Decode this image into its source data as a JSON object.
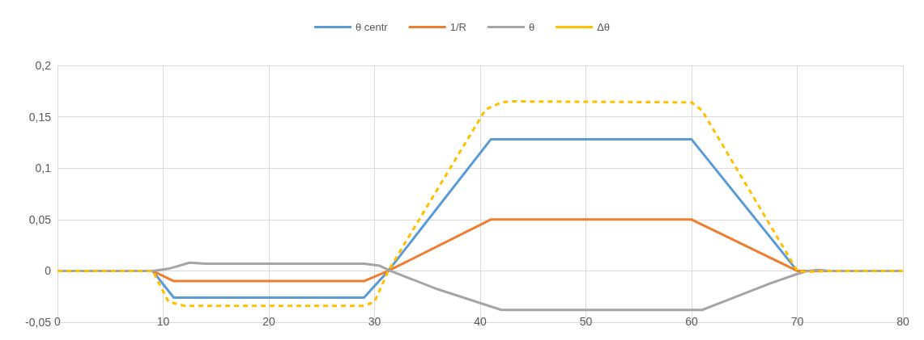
{
  "chart_data": {
    "type": "line",
    "legend": "top",
    "grid": true,
    "marker": "none",
    "line_style": "solid",
    "xlim": [
      0,
      80
    ],
    "xticks": [
      0,
      10,
      20,
      30,
      40,
      50,
      60,
      70,
      80
    ],
    "ylim": [
      -0.05,
      0.2
    ],
    "yticks": [
      {
        "value": -0.05,
        "label": "-0,05"
      },
      {
        "value": 0,
        "label": "0"
      },
      {
        "value": 0.05,
        "label": "0,05"
      },
      {
        "value": 0.1,
        "label": "0,1"
      },
      {
        "value": 0.15,
        "label": "0,15"
      },
      {
        "value": 0.2,
        "label": "0,2"
      }
    ],
    "series": [
      {
        "name": "θ centr",
        "color": "#5b9bd5",
        "x": [
          0,
          9,
          11,
          29,
          31.3,
          41,
          60,
          70,
          80
        ],
        "values": [
          0,
          0,
          -0.026,
          -0.026,
          0,
          0.128,
          0.128,
          0,
          0
        ]
      },
      {
        "name": "1/R",
        "color": "#ed7d31",
        "x": [
          0,
          9,
          11,
          29,
          31.3,
          41,
          60,
          70,
          80
        ],
        "values": [
          0,
          0,
          -0.01,
          -0.01,
          0,
          0.05,
          0.05,
          0,
          0
        ]
      },
      {
        "name": "θ",
        "color": "#a5a5a5",
        "x": [
          0,
          9,
          10.5,
          12.5,
          14,
          29,
          30.5,
          31.5,
          36,
          42,
          44,
          61,
          62.5,
          65,
          67.5,
          70,
          71,
          72,
          73,
          80
        ],
        "values": [
          0,
          0,
          0.002,
          0.008,
          0.007,
          0.007,
          0.005,
          0,
          -0.018,
          -0.038,
          -0.038,
          -0.038,
          -0.032,
          -0.022,
          -0.012,
          -0.003,
          0,
          0.001,
          0,
          0
        ]
      },
      {
        "name": "Δθ",
        "color": "#ffc000",
        "line_style": "dashed",
        "x": [
          0,
          9,
          10.5,
          12,
          29,
          30,
          31.3,
          40.5,
          42,
          43,
          60,
          61,
          70,
          71,
          73,
          80
        ],
        "values": [
          0,
          0,
          -0.03,
          -0.034,
          -0.034,
          -0.03,
          0,
          0.157,
          0.164,
          0.165,
          0.164,
          0.156,
          0,
          -0.001,
          0,
          0
        ]
      }
    ]
  }
}
